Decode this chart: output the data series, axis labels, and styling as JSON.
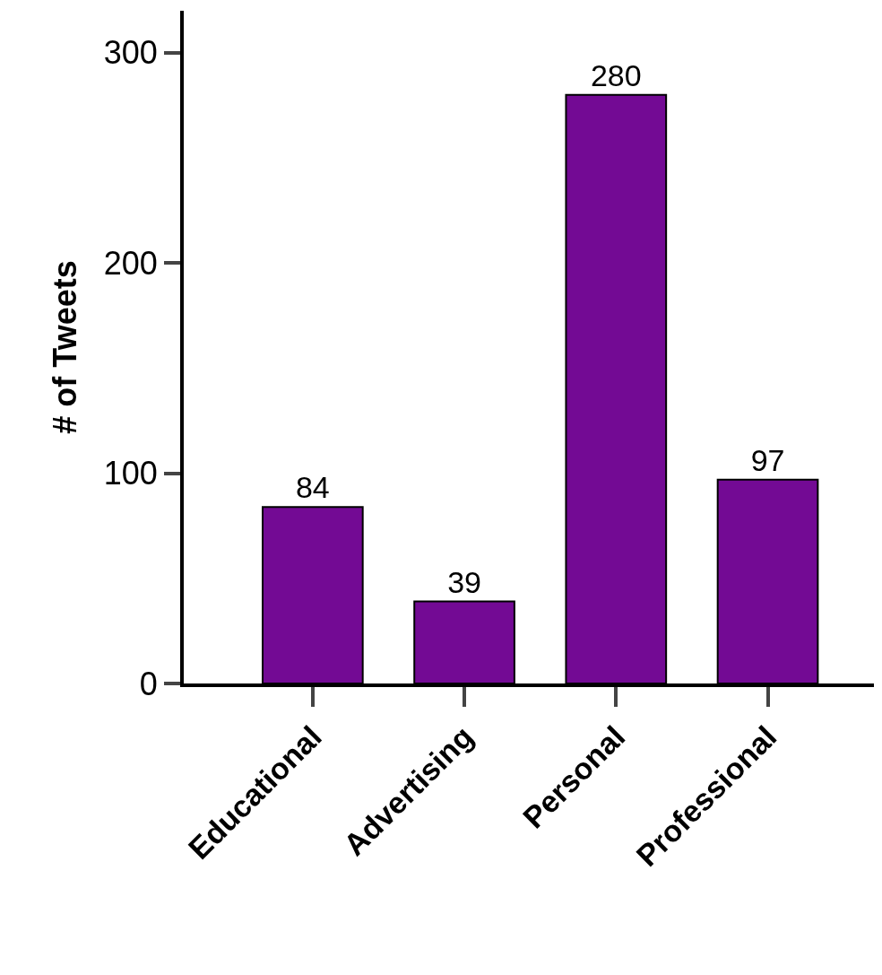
{
  "chart_data": {
    "type": "bar",
    "ylabel": "# of Tweets",
    "categories": [
      "Educational",
      "Advertising",
      "Personal",
      "Professional"
    ],
    "values": [
      84,
      39,
      280,
      97
    ],
    "color": "#730a94",
    "ylim": [
      0,
      320
    ],
    "yticks": [
      0,
      100,
      200,
      300
    ],
    "legend": false,
    "data_labels": true
  }
}
